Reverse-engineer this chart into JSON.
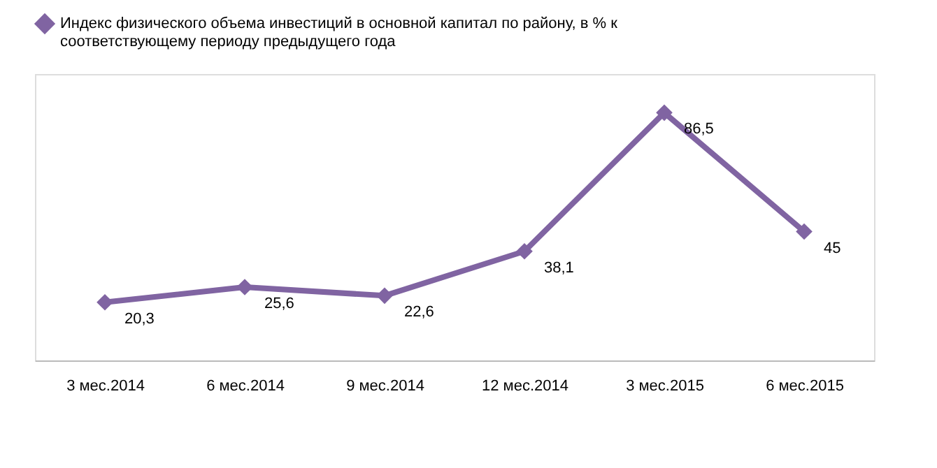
{
  "chart_data": {
    "type": "line",
    "categories": [
      "3 мес.2014",
      "6 мес.2014",
      "9 мес.2014",
      "12 мес.2014",
      "3 мес.2015",
      "6 мес.2015"
    ],
    "series": [
      {
        "name": "Индекс физического объема инвестиций в основной капитал по району, в % к соответствующему периоду предыдущего года",
        "color": "#8064a2",
        "values": [
          20.3,
          25.6,
          22.6,
          38.1,
          86.5,
          45
        ],
        "value_labels": [
          "20,3",
          "25,6",
          "22,6",
          "38,1",
          "86,5",
          "45"
        ]
      }
    ],
    "ylim": [
      0,
      100
    ],
    "tick_labels": "x",
    "data_labels": true,
    "marker": "diamond",
    "line_style": "solid",
    "legend": "top"
  }
}
